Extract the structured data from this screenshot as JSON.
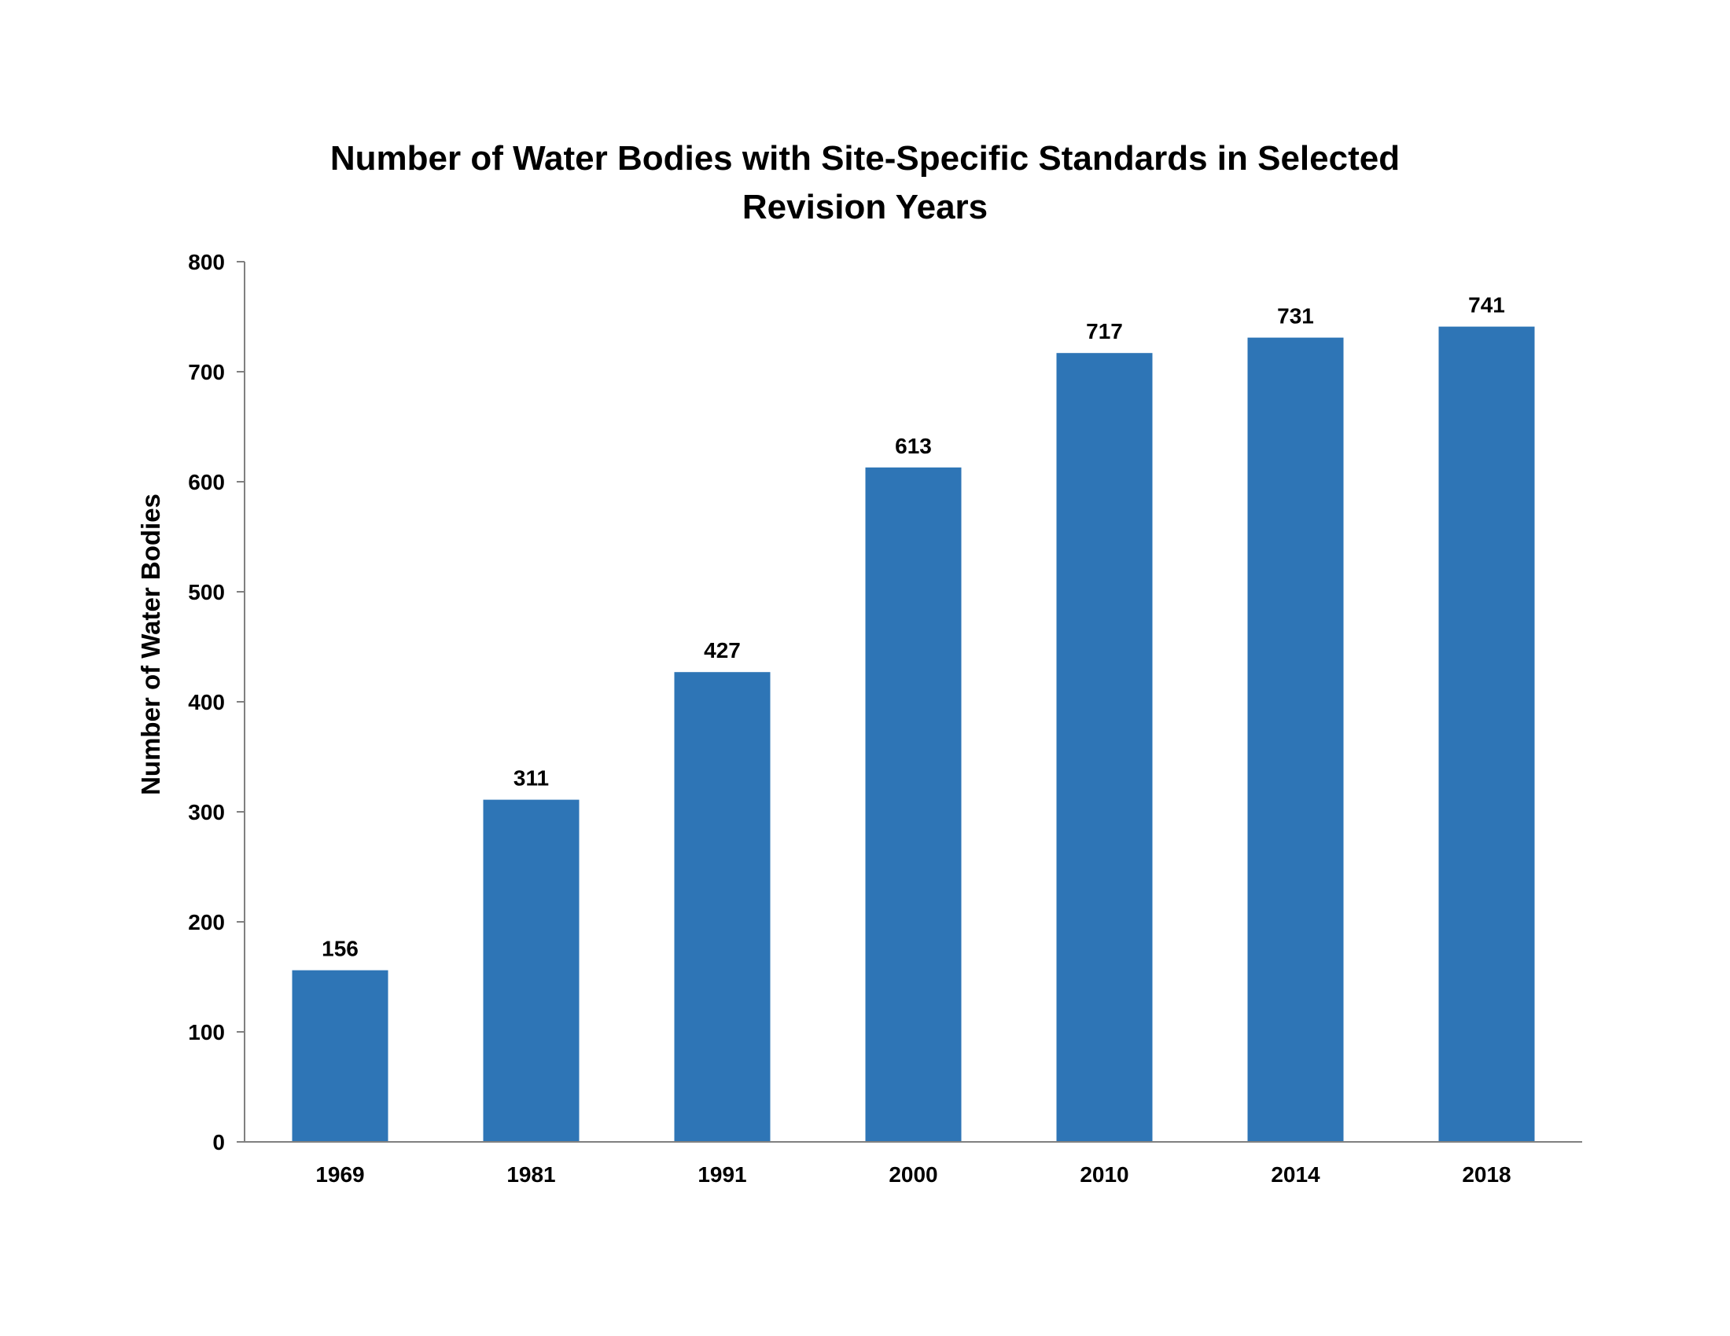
{
  "chart_data": {
    "type": "bar",
    "title": "Number of Water Bodies with Site-Specific Standards in Selected Revision Years",
    "title_lines": [
      "Number of Water Bodies with Site-Specific Standards in Selected",
      "Revision Years"
    ],
    "xlabel": "",
    "ylabel": "Number of Water Bodies",
    "categories": [
      "1969",
      "1981",
      "1991",
      "2000",
      "2010",
      "2014",
      "2018"
    ],
    "values": [
      156,
      311,
      427,
      613,
      717,
      731,
      741
    ],
    "data_labels": [
      "156",
      "311",
      "427",
      "613",
      "717",
      "731",
      "741"
    ],
    "ylim": [
      0,
      800
    ],
    "yticks": [
      0,
      100,
      200,
      300,
      400,
      500,
      600,
      700,
      800
    ],
    "ytick_labels": [
      "0",
      "100",
      "200",
      "300",
      "400",
      "500",
      "600",
      "700",
      "800"
    ],
    "grid": false,
    "legend": "none",
    "bar_color": "#2E75B6",
    "axis_color": "#808080"
  }
}
